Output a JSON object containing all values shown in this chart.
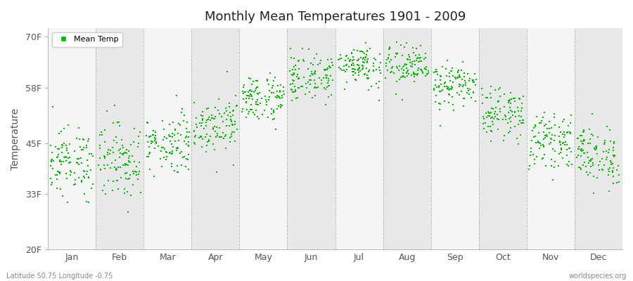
{
  "title": "Monthly Mean Temperatures 1901 - 2009",
  "ylabel": "Temperature",
  "yticks": [
    20,
    33,
    45,
    58,
    70
  ],
  "ytick_labels": [
    "20F",
    "33F",
    "45F",
    "58F",
    "70F"
  ],
  "ylim": [
    20,
    72
  ],
  "months": [
    "Jan",
    "Feb",
    "Mar",
    "Apr",
    "May",
    "Jun",
    "Jul",
    "Aug",
    "Sep",
    "Oct",
    "Nov",
    "Dec"
  ],
  "dot_color": "#00bb00",
  "dot_size": 2.5,
  "background_color": "#ffffff",
  "plot_bg_light": "#f5f5f5",
  "plot_bg_dark": "#e8e8e8",
  "legend_label": "Mean Temp",
  "footer_left": "Latitude 50.75 Longitude -0.75",
  "footer_right": "worldspecies.org",
  "monthly_means_F": [
    40.5,
    41.0,
    45.0,
    49.5,
    55.5,
    60.5,
    63.5,
    63.0,
    58.5,
    52.0,
    45.5,
    42.0
  ],
  "monthly_stds_F": [
    4.0,
    4.5,
    3.5,
    3.2,
    2.8,
    2.8,
    2.5,
    2.5,
    2.5,
    2.8,
    3.0,
    3.5
  ],
  "n_years": 109,
  "start_year": 1901
}
